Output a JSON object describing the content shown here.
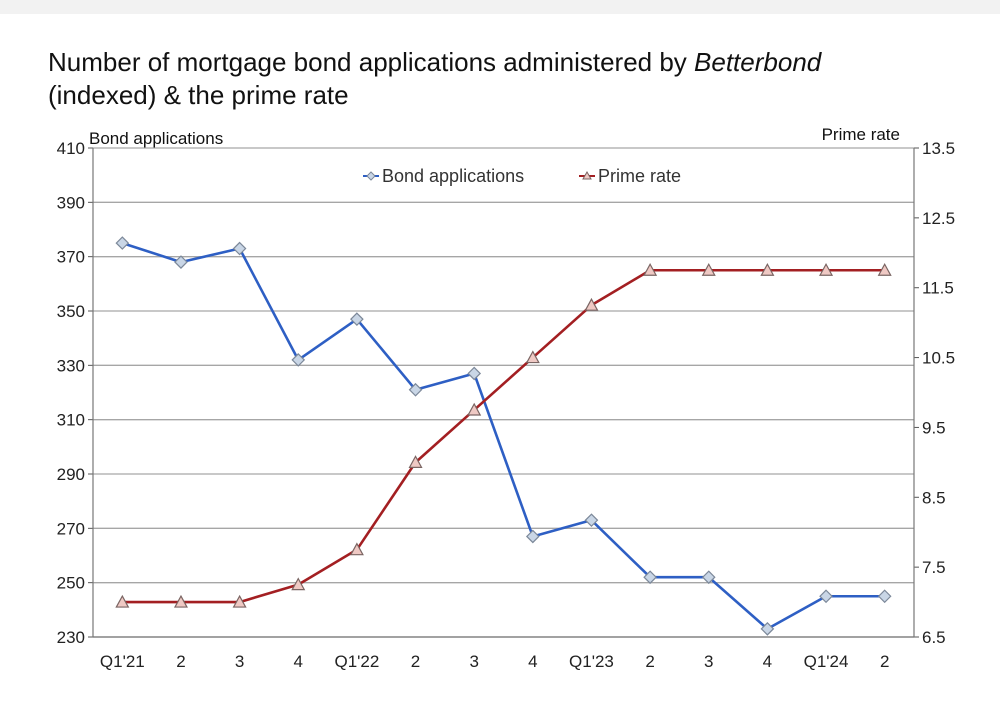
{
  "title": {
    "prefix": "Number of mortgage bond applications administered by ",
    "brand": "Betterbond",
    "suffix": "(indexed) & the prime rate"
  },
  "chart_data": {
    "type": "line",
    "categories": [
      "Q1'21",
      "2",
      "3",
      "4",
      "Q1'22",
      "2",
      "3",
      "4",
      "Q1'23",
      "2",
      "3",
      "4",
      "Q1'24",
      "2"
    ],
    "y_left": {
      "label": "Bond applications",
      "lim": [
        230,
        410
      ],
      "ticks": [
        230,
        250,
        270,
        290,
        310,
        330,
        350,
        370,
        390,
        410
      ]
    },
    "y_right": {
      "label": "Prime rate",
      "lim": [
        6.5,
        13.5
      ],
      "ticks": [
        6.5,
        7.5,
        8.5,
        9.5,
        10.5,
        11.5,
        12.5,
        13.5
      ]
    },
    "series": [
      {
        "name": "Bond applications",
        "axis": "left",
        "color": "#2e5fc4",
        "marker": "diamond",
        "values": [
          375,
          368,
          373,
          332,
          347,
          321,
          327,
          267,
          273,
          252,
          252,
          233,
          245,
          245
        ]
      },
      {
        "name": "Prime rate",
        "axis": "right",
        "color": "#a31f22",
        "marker": "triangle",
        "values": [
          7.0,
          7.0,
          7.0,
          7.25,
          7.75,
          9.0,
          9.75,
          10.5,
          11.25,
          11.75,
          11.75,
          11.75,
          11.75,
          11.75
        ]
      }
    ],
    "grid": true,
    "legend": "top-center"
  }
}
